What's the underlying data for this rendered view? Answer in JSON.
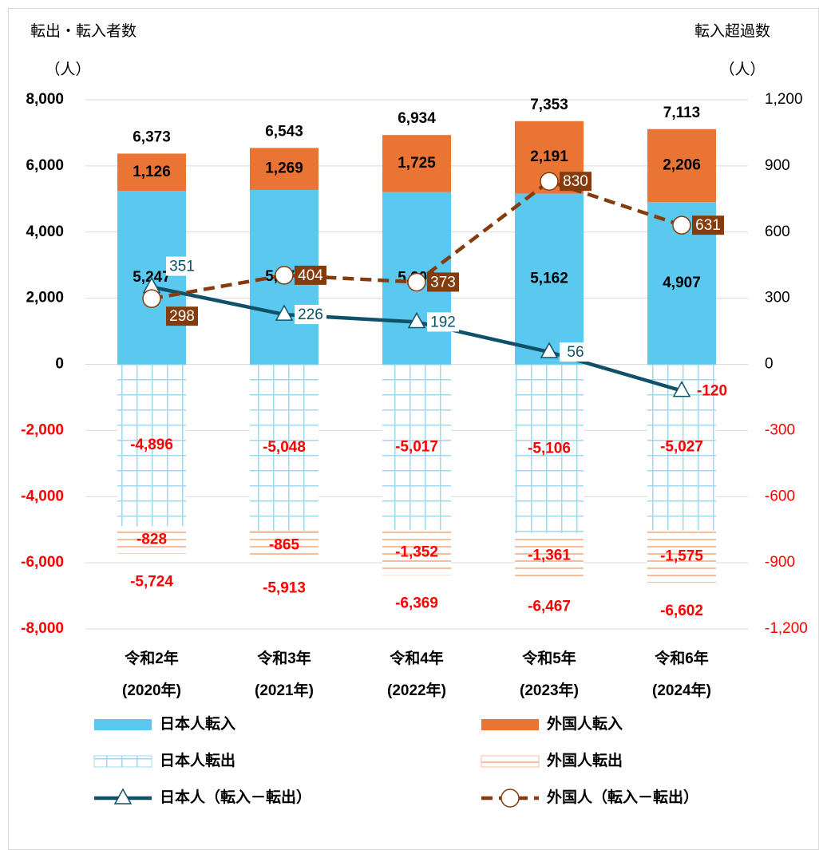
{
  "chart_data": {
    "type": "bar",
    "y_title": "転出・転入者数",
    "y_unit": "（人）",
    "y2_title": "転入超過数",
    "y2_unit": "（人）",
    "categories": [
      [
        "令和2年",
        "(2020年)"
      ],
      [
        "令和3年",
        "(2021年)"
      ],
      [
        "令和4年",
        "(2022年)"
      ],
      [
        "令和5年",
        "(2023年)"
      ],
      [
        "令和6年",
        "(2024年)"
      ]
    ],
    "ylim": [
      -8000,
      8000
    ],
    "yticks": [
      {
        "value": -8000,
        "label": "-8,000"
      },
      {
        "value": -6000,
        "label": "-6,000"
      },
      {
        "value": -4000,
        "label": "-4,000"
      },
      {
        "value": -2000,
        "label": "-2,000"
      },
      0,
      {
        "value": 2000,
        "label": "2,000"
      },
      {
        "value": 4000,
        "label": "4,000"
      },
      {
        "value": 6000,
        "label": "6,000"
      },
      {
        "value": 8000,
        "label": "8,000"
      }
    ],
    "y2lim": [
      -1200,
      1200
    ],
    "y2ticks": [
      {
        "value": -1200,
        "label": "-1,200"
      },
      -900,
      -600,
      -300,
      0,
      300,
      600,
      900,
      {
        "value": 1200,
        "label": "1,200"
      }
    ],
    "grid": true,
    "series": [
      {
        "name": "日本人転入",
        "type": "bar",
        "color": "#5bc8f0",
        "pattern": "solid",
        "values": [
          5247,
          5274,
          5209,
          5162,
          4907
        ],
        "value_labels": [
          "5,247",
          "5,274",
          "5,209",
          "5,162",
          "4,907"
        ]
      },
      {
        "name": "外国人転入",
        "type": "bar",
        "color": "#ea7433",
        "pattern": "solid",
        "values": [
          1126,
          1269,
          1725,
          2191,
          2206
        ],
        "value_labels": [
          "1,126",
          "1,269",
          "1,725",
          "2,191",
          "2,206"
        ]
      },
      {
        "name": "日本人転出",
        "type": "bar",
        "color": "#9fd8f2",
        "pattern": "grid",
        "values": [
          -4896,
          -5048,
          -5017,
          -5106,
          -5027
        ],
        "value_labels": [
          "-4,896",
          "-5,048",
          "-5,017",
          "-5,106",
          "-5,027"
        ]
      },
      {
        "name": "外国人転出",
        "type": "bar",
        "color": "#f5bf9e",
        "pattern": "hlines",
        "values": [
          -828,
          -865,
          -1352,
          -1361,
          -1575
        ],
        "value_labels": [
          "-828",
          "-865",
          "-1,352",
          "-1,361",
          "-1,575"
        ]
      },
      {
        "name": "日本人（転入－転出）",
        "type": "line",
        "axis": "y2",
        "color": "#0e5168",
        "marker": "triangle",
        "dash": false,
        "values": [
          351,
          226,
          192,
          56,
          -120
        ]
      },
      {
        "name": "外国人（転入－転出）",
        "type": "line",
        "axis": "y2",
        "color": "#843c0c",
        "marker": "circle",
        "dash": true,
        "values": [
          298,
          404,
          373,
          830,
          631
        ]
      }
    ],
    "positive_totals": {
      "values": [
        6373,
        6543,
        6934,
        7353,
        7113
      ],
      "value_labels": [
        "6,373",
        "6,543",
        "6,934",
        "7,353",
        "7,113"
      ]
    },
    "negative_totals": {
      "values": [
        -5724,
        -5913,
        -6369,
        -6467,
        -6602
      ],
      "value_labels": [
        "-5,724",
        "-5,913",
        "-6,369",
        "-6,467",
        "-6,602"
      ]
    }
  }
}
